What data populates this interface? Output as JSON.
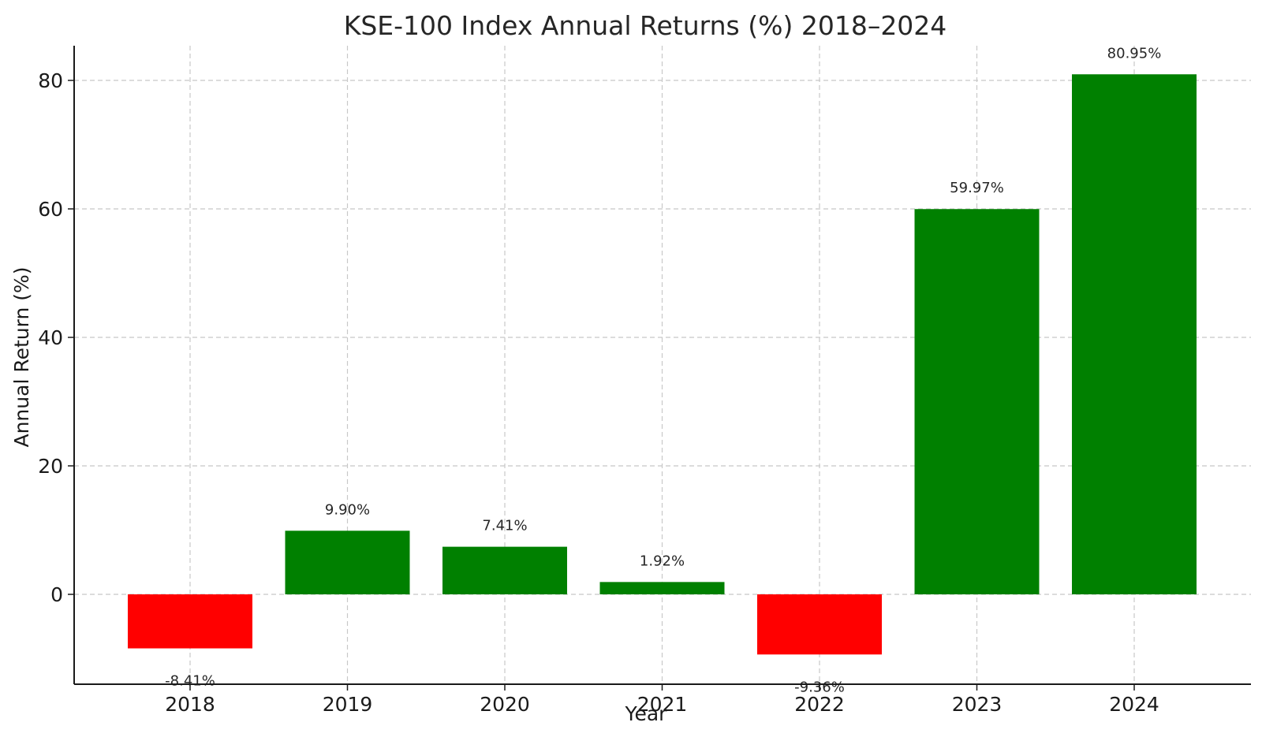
{
  "chart_data": {
    "type": "bar",
    "title": "KSE-100 Index Annual Returns (%) 2018–2024",
    "xlabel": "Year",
    "ylabel": "Annual Return (%)",
    "categories": [
      "2018",
      "2019",
      "2020",
      "2021",
      "2022",
      "2023",
      "2024"
    ],
    "values": [
      -8.41,
      9.9,
      7.41,
      1.92,
      -9.36,
      59.97,
      80.95
    ],
    "data_labels": [
      "-8.41%",
      "9.90%",
      "7.41%",
      "1.92%",
      "-9.36%",
      "59.97%",
      "80.95%"
    ],
    "ylim": [
      -14,
      86
    ],
    "yticks": [
      0,
      20,
      40,
      60,
      80
    ],
    "grid": true,
    "colors": {
      "positive": "#008000",
      "negative": "#ff0000"
    }
  }
}
